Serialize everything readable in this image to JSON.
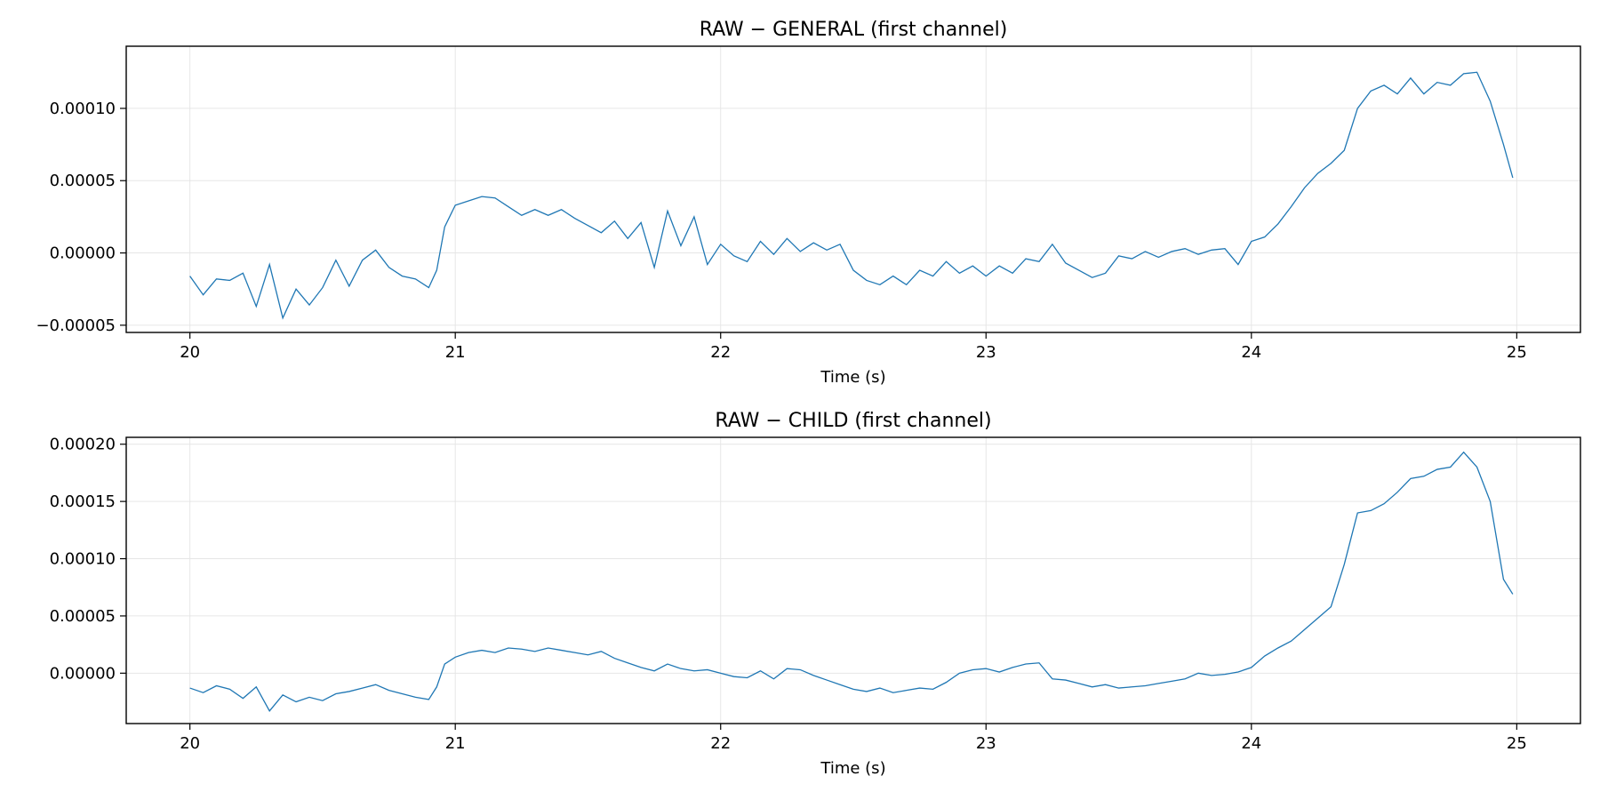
{
  "chart_data": [
    {
      "type": "line",
      "title": "RAW − GENERAL (first channel)",
      "xlabel": "Time (s)",
      "ylabel": "",
      "xlim": [
        19.76,
        25.24
      ],
      "ylim": [
        -5.5e-05,
        0.000143
      ],
      "xticks": [
        20,
        21,
        22,
        23,
        24,
        25
      ],
      "xtick_labels": [
        "20",
        "21",
        "22",
        "23",
        "24",
        "25"
      ],
      "yticks": [
        -5e-05,
        0.0,
        5e-05,
        0.0001
      ],
      "ytick_labels": [
        "−0.00005",
        "0.00000",
        "0.00005",
        "0.00010"
      ],
      "grid": true,
      "line_color": "#1f77b4",
      "series": [
        {
          "x": [
            20.0,
            20.05,
            20.1,
            20.15,
            20.2,
            20.25,
            20.3,
            20.35,
            20.4,
            20.45,
            20.5,
            20.55,
            20.6,
            20.65,
            20.7,
            20.75,
            20.8,
            20.85,
            20.9,
            20.93,
            20.96,
            21.0,
            21.05,
            21.1,
            21.15,
            21.2,
            21.25,
            21.3,
            21.35,
            21.4,
            21.45,
            21.5,
            21.55,
            21.6,
            21.65,
            21.7,
            21.75,
            21.8,
            21.85,
            21.9,
            21.95,
            22.0,
            22.05,
            22.1,
            22.15,
            22.2,
            22.25,
            22.3,
            22.35,
            22.4,
            22.45,
            22.5,
            22.55,
            22.6,
            22.65,
            22.7,
            22.75,
            22.8,
            22.85,
            22.9,
            22.95,
            23.0,
            23.05,
            23.1,
            23.15,
            23.2,
            23.25,
            23.3,
            23.35,
            23.4,
            23.45,
            23.5,
            23.55,
            23.6,
            23.65,
            23.7,
            23.75,
            23.8,
            23.85,
            23.9,
            23.95,
            24.0,
            24.05,
            24.1,
            24.15,
            24.2,
            24.25,
            24.3,
            24.35,
            24.4,
            24.45,
            24.5,
            24.55,
            24.6,
            24.65,
            24.7,
            24.75,
            24.8,
            24.85,
            24.9,
            24.95,
            24.985
          ],
          "y": [
            -1.6e-05,
            -2.9e-05,
            -1.8e-05,
            -1.9e-05,
            -1.4e-05,
            -3.7e-05,
            -8e-06,
            -4.5e-05,
            -2.5e-05,
            -3.6e-05,
            -2.4e-05,
            -5e-06,
            -2.3e-05,
            -5e-06,
            2e-06,
            -1e-05,
            -1.6e-05,
            -1.8e-05,
            -2.4e-05,
            -1.2e-05,
            1.8e-05,
            3.3e-05,
            3.6e-05,
            3.9e-05,
            3.8e-05,
            3.2e-05,
            2.6e-05,
            3e-05,
            2.6e-05,
            3e-05,
            2.4e-05,
            1.9e-05,
            1.4e-05,
            2.2e-05,
            1e-05,
            2.1e-05,
            -1e-05,
            2.9e-05,
            5e-06,
            2.5e-05,
            -8e-06,
            6e-06,
            -2e-06,
            -6e-06,
            8e-06,
            -1e-06,
            1e-05,
            1e-06,
            7e-06,
            2e-06,
            6e-06,
            -1.2e-05,
            -1.9e-05,
            -2.2e-05,
            -1.6e-05,
            -2.2e-05,
            -1.2e-05,
            -1.6e-05,
            -6e-06,
            -1.4e-05,
            -9e-06,
            -1.6e-05,
            -9e-06,
            -1.4e-05,
            -4e-06,
            -6e-06,
            6e-06,
            -7e-06,
            -1.2e-05,
            -1.7e-05,
            -1.4e-05,
            -2e-06,
            -4e-06,
            1e-06,
            -3e-06,
            1e-06,
            3e-06,
            -1e-06,
            2e-06,
            3e-06,
            -8e-06,
            8e-06,
            1.1e-05,
            2e-05,
            3.2e-05,
            4.5e-05,
            5.5e-05,
            6.2e-05,
            7.1e-05,
            0.0001,
            0.000112,
            0.000116,
            0.00011,
            0.000121,
            0.00011,
            0.000118,
            0.000116,
            0.000124,
            0.000125,
            0.000105,
            7.5e-05,
            5.2e-05
          ]
        }
      ]
    },
    {
      "type": "line",
      "title": "RAW − CHILD (first channel)",
      "xlabel": "Time (s)",
      "ylabel": "",
      "xlim": [
        19.76,
        25.24
      ],
      "ylim": [
        -4.4e-05,
        0.000206
      ],
      "xticks": [
        20,
        21,
        22,
        23,
        24,
        25
      ],
      "xtick_labels": [
        "20",
        "21",
        "22",
        "23",
        "24",
        "25"
      ],
      "yticks": [
        0.0,
        5e-05,
        0.0001,
        0.00015,
        0.0002
      ],
      "ytick_labels": [
        "0.00000",
        "0.00005",
        "0.00010",
        "0.00015",
        "0.00020"
      ],
      "grid": true,
      "line_color": "#1f77b4",
      "series": [
        {
          "x": [
            20.0,
            20.05,
            20.1,
            20.15,
            20.2,
            20.25,
            20.3,
            20.35,
            20.4,
            20.45,
            20.5,
            20.55,
            20.6,
            20.65,
            20.7,
            20.75,
            20.8,
            20.85,
            20.9,
            20.93,
            20.96,
            21.0,
            21.05,
            21.1,
            21.15,
            21.2,
            21.25,
            21.3,
            21.35,
            21.4,
            21.45,
            21.5,
            21.55,
            21.6,
            21.65,
            21.7,
            21.75,
            21.8,
            21.85,
            21.9,
            21.95,
            22.0,
            22.05,
            22.1,
            22.15,
            22.2,
            22.25,
            22.3,
            22.35,
            22.4,
            22.45,
            22.5,
            22.55,
            22.6,
            22.65,
            22.7,
            22.75,
            22.8,
            22.85,
            22.9,
            22.95,
            23.0,
            23.05,
            23.1,
            23.15,
            23.2,
            23.25,
            23.3,
            23.35,
            23.4,
            23.45,
            23.5,
            23.55,
            23.6,
            23.65,
            23.7,
            23.75,
            23.8,
            23.85,
            23.9,
            23.95,
            24.0,
            24.05,
            24.1,
            24.15,
            24.2,
            24.25,
            24.3,
            24.35,
            24.4,
            24.45,
            24.5,
            24.55,
            24.6,
            24.65,
            24.7,
            24.75,
            24.8,
            24.85,
            24.9,
            24.95,
            24.985
          ],
          "y": [
            -1.3e-05,
            -1.7e-05,
            -1.1e-05,
            -1.4e-05,
            -2.2e-05,
            -1.2e-05,
            -3.3e-05,
            -1.9e-05,
            -2.5e-05,
            -2.1e-05,
            -2.4e-05,
            -1.8e-05,
            -1.6e-05,
            -1.3e-05,
            -1e-05,
            -1.5e-05,
            -1.8e-05,
            -2.1e-05,
            -2.3e-05,
            -1.2e-05,
            8e-06,
            1.4e-05,
            1.8e-05,
            2e-05,
            1.8e-05,
            2.2e-05,
            2.1e-05,
            1.9e-05,
            2.2e-05,
            2e-05,
            1.8e-05,
            1.6e-05,
            1.9e-05,
            1.3e-05,
            9e-06,
            5e-06,
            2e-06,
            8e-06,
            4e-06,
            2e-06,
            3e-06,
            0.0,
            -3e-06,
            -4e-06,
            2e-06,
            -5e-06,
            4e-06,
            3e-06,
            -2e-06,
            -6e-06,
            -1e-05,
            -1.4e-05,
            -1.6e-05,
            -1.3e-05,
            -1.7e-05,
            -1.5e-05,
            -1.3e-05,
            -1.4e-05,
            -8e-06,
            0.0,
            3e-06,
            4e-06,
            1e-06,
            5e-06,
            8e-06,
            9e-06,
            -5e-06,
            -6e-06,
            -9e-06,
            -1.2e-05,
            -1e-05,
            -1.3e-05,
            -1.2e-05,
            -1.1e-05,
            -9e-06,
            -7e-06,
            -5e-06,
            0.0,
            -2e-06,
            -1e-06,
            1e-06,
            5e-06,
            1.5e-05,
            2.2e-05,
            2.8e-05,
            3.8e-05,
            4.8e-05,
            5.8e-05,
            9.5e-05,
            0.00014,
            0.000142,
            0.000148,
            0.000158,
            0.00017,
            0.000172,
            0.000178,
            0.00018,
            0.000193,
            0.00018,
            0.00015,
            8.2e-05,
            6.9e-05
          ]
        }
      ]
    }
  ]
}
